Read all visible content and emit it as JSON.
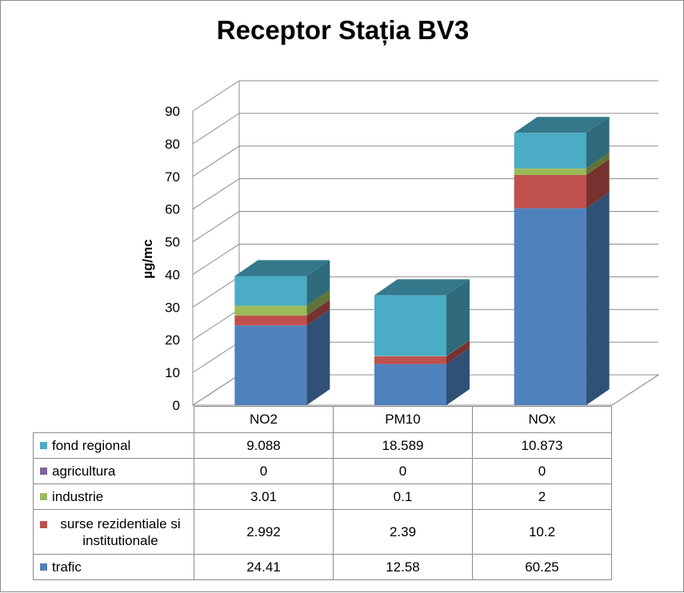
{
  "chart_data": {
    "type": "bar",
    "stacked": true,
    "three_d": true,
    "title": "Receptor Stația BV3",
    "xlabel": "",
    "ylabel": "µg/mc",
    "ylim": [
      0,
      90
    ],
    "yticks": [
      0,
      10,
      20,
      30,
      40,
      50,
      60,
      70,
      80,
      90
    ],
    "grid": true,
    "legend": "data-table",
    "categories": [
      "NO2",
      "PM10",
      "NOx"
    ],
    "series": [
      {
        "name": "trafic",
        "color": "#4f81bd",
        "values": [
          24.41,
          12.58,
          60.25
        ],
        "labels": [
          "24.41",
          "12.58",
          "60.25"
        ]
      },
      {
        "name": "surse rezidentiale si institutionale",
        "color": "#c0504d",
        "values": [
          2.992,
          2.39,
          10.2
        ],
        "labels": [
          "2.992",
          "2.39",
          "10.2"
        ]
      },
      {
        "name": "industrie",
        "color": "#9bbb59",
        "values": [
          3.01,
          0.1,
          2
        ],
        "labels": [
          "3.01",
          "0.1",
          "2"
        ]
      },
      {
        "name": "agricultura",
        "color": "#8064a2",
        "values": [
          0,
          0,
          0
        ],
        "labels": [
          "0",
          "0",
          "0"
        ]
      },
      {
        "name": "fond regional",
        "color": "#4bacc6",
        "values": [
          9.088,
          18.589,
          10.873
        ],
        "labels": [
          "9.088",
          "18.589",
          "10.873"
        ]
      }
    ]
  }
}
